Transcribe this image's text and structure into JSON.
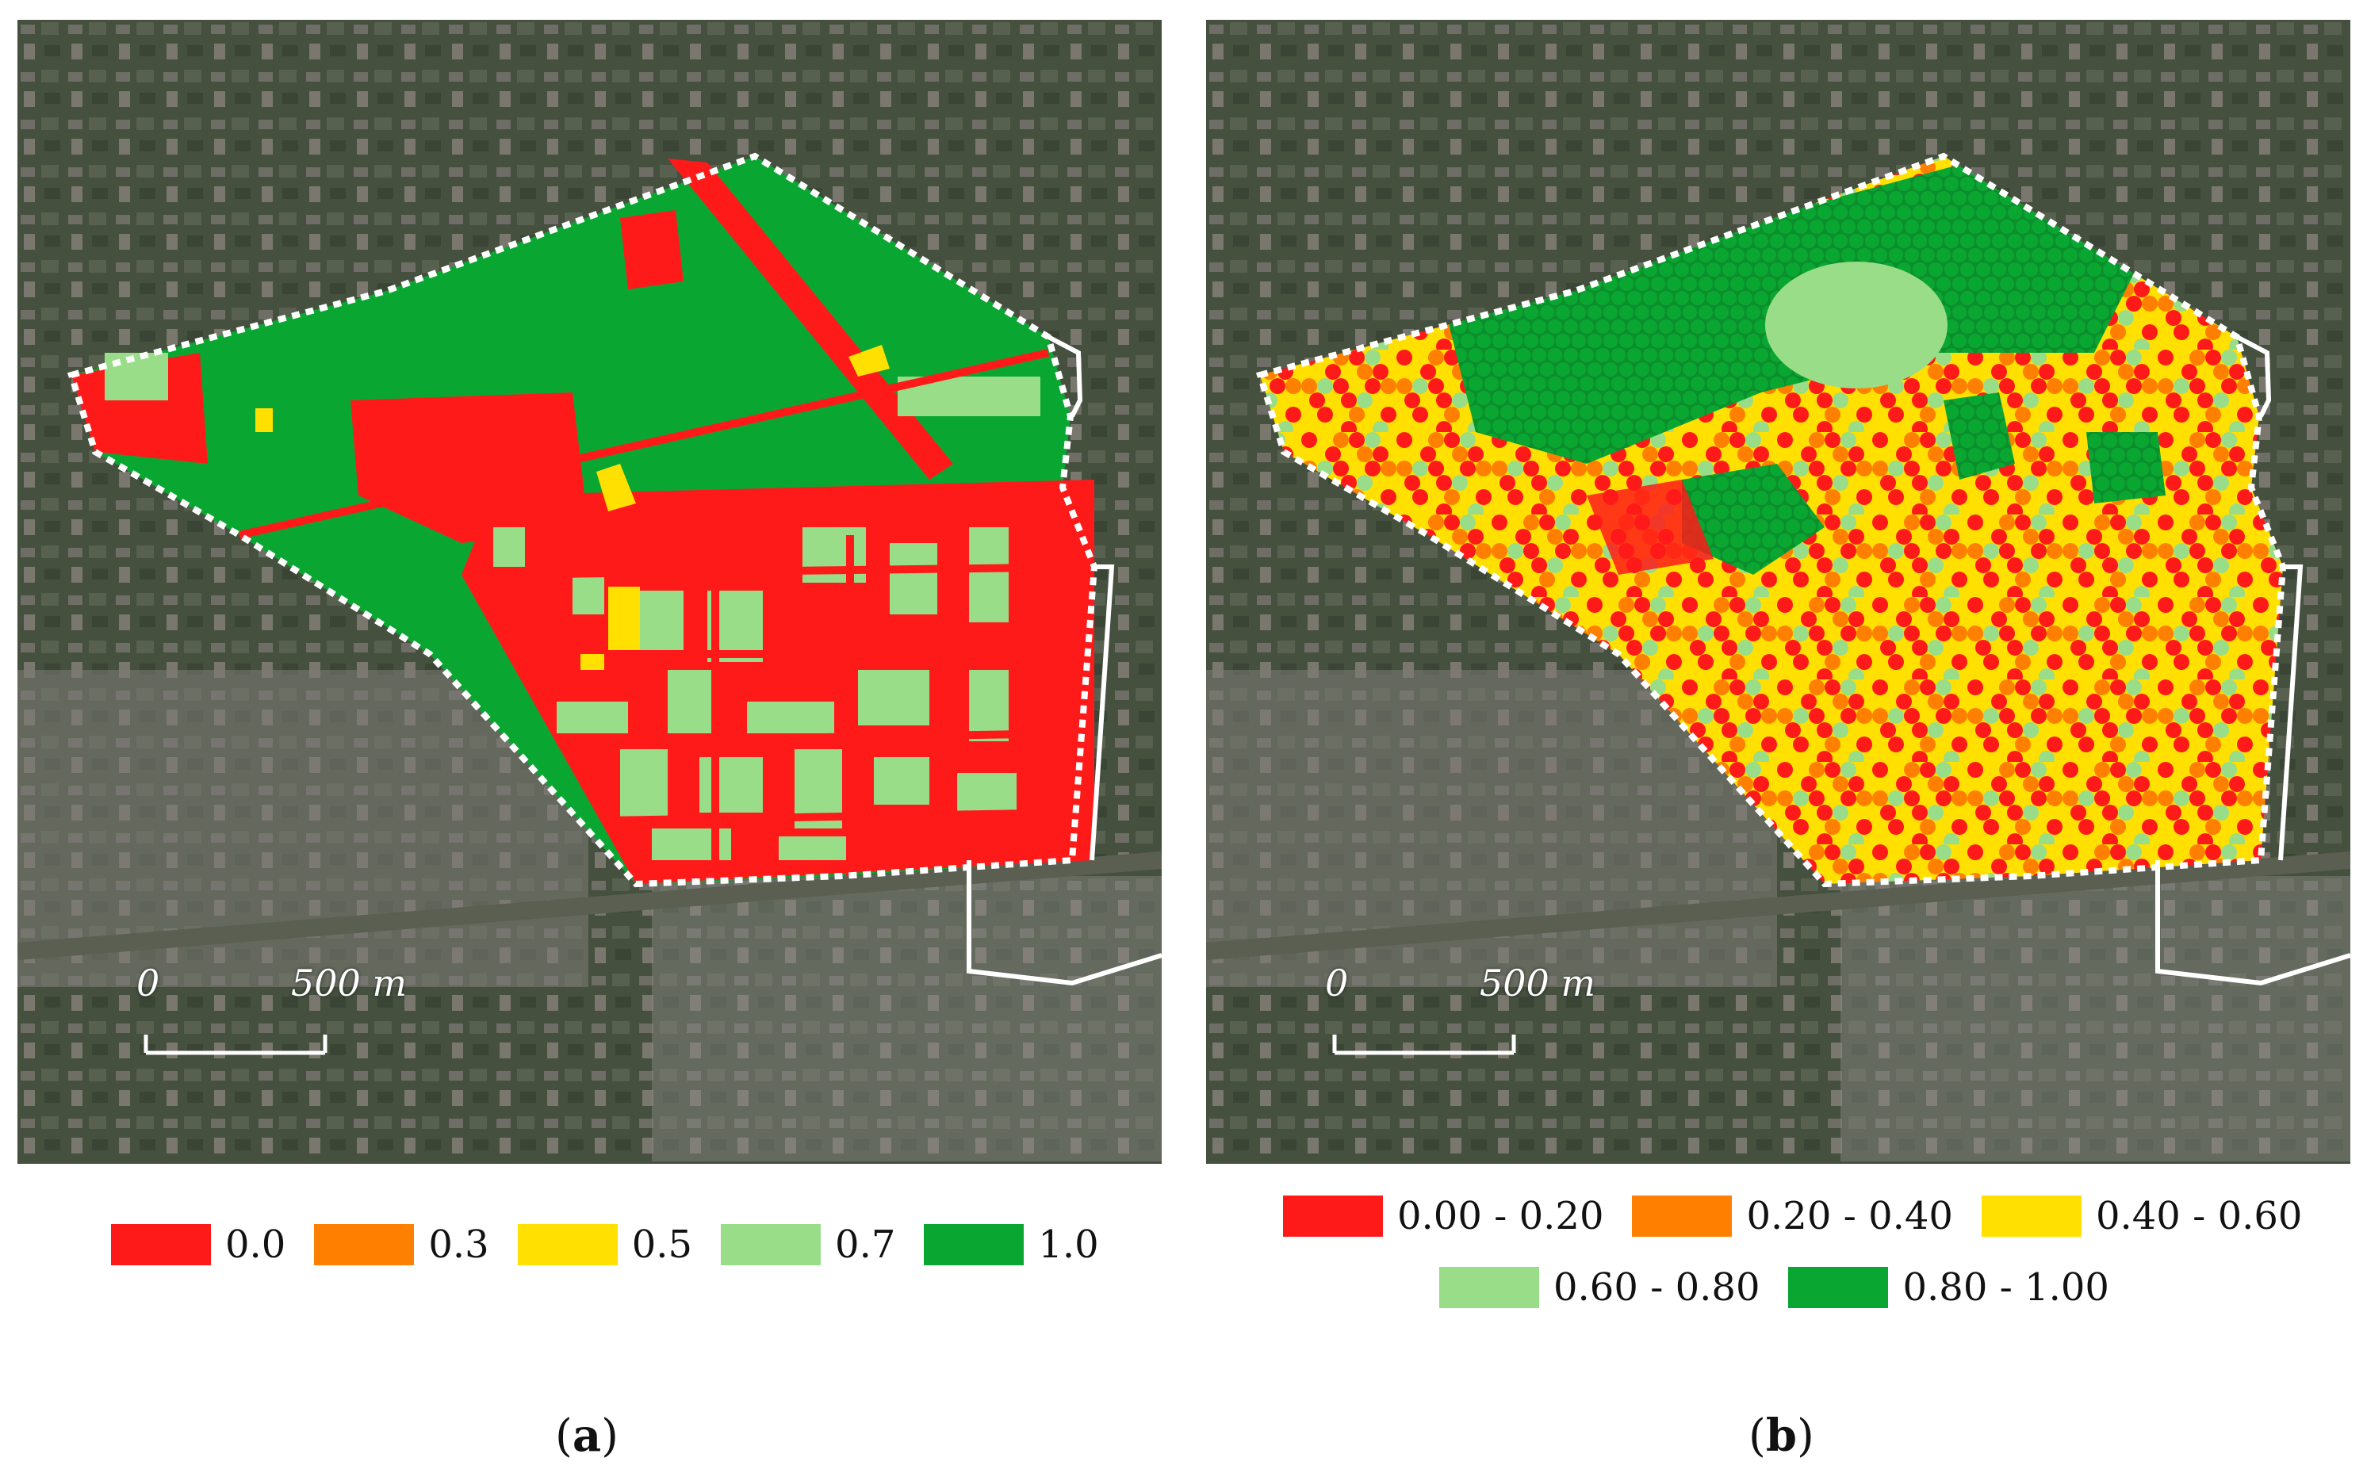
{
  "panels": [
    {
      "id": "a",
      "caption_open": "(",
      "caption_letter": "a",
      "caption_close": ")",
      "scale_start": "0",
      "scale_end": "500 m",
      "legend": [
        {
          "color": "#ff1a1a",
          "label": "0.0"
        },
        {
          "color": "#ff8000",
          "label": "0.3"
        },
        {
          "color": "#ffe000",
          "label": "0.5"
        },
        {
          "color": "#99dd88",
          "label": "0.7"
        },
        {
          "color": "#0aa632",
          "label": "1.0"
        }
      ]
    },
    {
      "id": "b",
      "caption_open": "(",
      "caption_letter": "b",
      "caption_close": ")",
      "scale_start": "0",
      "scale_end": "500 m",
      "legend": [
        {
          "color": "#ff1a1a",
          "label": "0.00 - 0.20"
        },
        {
          "color": "#ff8000",
          "label": "0.20 - 0.40"
        },
        {
          "color": "#ffe000",
          "label": "0.40 - 0.60"
        },
        {
          "color": "#99dd88",
          "label": "0.60 - 0.80"
        },
        {
          "color": "#0aa632",
          "label": "0.80 - 1.00"
        }
      ]
    }
  ],
  "colors": {
    "satellite_dark": "#3f4a3c",
    "satellite_urban": "#7d7c76",
    "boundary": "#ffffff"
  }
}
